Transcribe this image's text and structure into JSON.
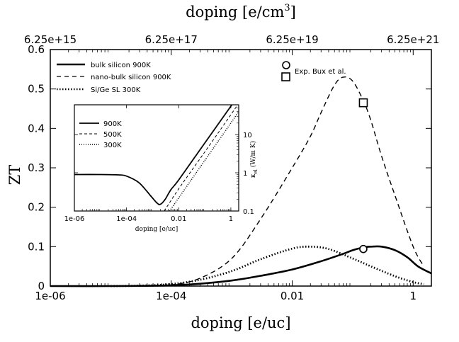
{
  "chart_data": [
    {
      "type": "line",
      "xlabel": "doping [e/uc]",
      "ylabel": "ZT",
      "x2label": "doping [e/cm",
      "x2label_sup": "3",
      "x2label_end": "]",
      "x_scale": "log",
      "xlim": [
        1e-06,
        2
      ],
      "ylim": [
        0,
        0.6
      ],
      "x_ticks": [
        1e-06,
        0.0001,
        0.01,
        1
      ],
      "x_tick_labels": [
        "1e-06",
        "1e-04",
        "0.01",
        "1"
      ],
      "y_ticks": [
        0,
        0.1,
        0.2,
        0.3,
        0.4,
        0.5,
        0.6
      ],
      "y_tick_labels": [
        "0",
        "0.1",
        "0.2",
        "0.3",
        "0.4",
        "0.5",
        "0.6"
      ],
      "x2_tick_labels": [
        "6.25e+15",
        "6.25e+17",
        "6.25e+19",
        "6.25e+21"
      ],
      "legend_position": "top-left",
      "series": [
        {
          "name": "bulk silicon 900K",
          "style": "solid",
          "x": [
            1e-06,
            1e-05,
            3e-05,
            0.0001,
            0.0003,
            0.001,
            0.003,
            0.01,
            0.03,
            0.07,
            0.1,
            0.15,
            0.2,
            0.3,
            0.5,
            0.8,
            1.2,
            2
          ],
          "y": [
            0,
            0,
            0.0005,
            0.002,
            0.006,
            0.014,
            0.026,
            0.042,
            0.063,
            0.082,
            0.091,
            0.098,
            0.1,
            0.1,
            0.091,
            0.073,
            0.05,
            0.032
          ]
        },
        {
          "name": "nano-bulk silicon 900K",
          "style": "dashed",
          "x": [
            1e-05,
            3e-05,
            0.0001,
            0.0003,
            0.001,
            0.003,
            0.01,
            0.02,
            0.03,
            0.05,
            0.07,
            0.1,
            0.15,
            0.2,
            0.3,
            0.5,
            1,
            1.5
          ],
          "y": [
            0,
            0.001,
            0.003,
            0.02,
            0.07,
            0.17,
            0.3,
            0.38,
            0.44,
            0.51,
            0.53,
            0.52,
            0.47,
            0.42,
            0.33,
            0.23,
            0.1,
            0.05
          ]
        },
        {
          "name": "Si/Ge SL 300K",
          "style": "dotted",
          "x": [
            1e-05,
            3e-05,
            0.0001,
            0.0003,
            0.001,
            0.003,
            0.01,
            0.02,
            0.04,
            0.1,
            0.2,
            0.5,
            1,
            1.5
          ],
          "y": [
            0,
            0.001,
            0.005,
            0.016,
            0.038,
            0.068,
            0.095,
            0.1,
            0.094,
            0.07,
            0.05,
            0.025,
            0.01,
            0.005
          ]
        }
      ],
      "experiments": [
        {
          "name": "Exp. Bux et al.",
          "marker": "circle",
          "x": 0.15,
          "y": 0.094
        },
        {
          "name": "",
          "marker": "square",
          "x": 0.15,
          "y": 0.465
        }
      ]
    },
    {
      "type": "line",
      "xlabel": "doping [e/uc]",
      "ylabel": "κ",
      "ylabel_sub": "el",
      "ylabel_end": " (W/m K)",
      "x_scale": "log",
      "y_scale": "log",
      "xlim": [
        1e-06,
        2
      ],
      "ylim": [
        0.1,
        60
      ],
      "x_tick_labels": [
        "1e-06",
        "1e-04",
        "0.01",
        "1"
      ],
      "y_tick_labels": [
        "0.1",
        "1",
        "10"
      ],
      "legend_position": "top-left",
      "series": [
        {
          "name": "900K",
          "style": "solid",
          "x": [
            1e-06,
            1e-05,
            5e-05,
            0.0001,
            0.0003,
            0.0008,
            0.0015,
            0.002,
            0.003,
            0.005,
            0.01,
            0.1,
            1,
            2
          ],
          "y": [
            0.9,
            0.9,
            0.88,
            0.82,
            0.55,
            0.26,
            0.16,
            0.15,
            0.2,
            0.36,
            0.65,
            6,
            55,
            110
          ]
        },
        {
          "name": "500K",
          "style": "dashed",
          "x": [
            0.0028,
            0.01,
            0.1,
            1,
            2
          ],
          "y": [
            0.1,
            0.38,
            3.5,
            33,
            66
          ]
        },
        {
          "name": "300K",
          "style": "dotted",
          "x": [
            0.0045,
            0.01,
            0.1,
            1,
            2
          ],
          "y": [
            0.1,
            0.22,
            2.1,
            20,
            40
          ]
        }
      ]
    }
  ]
}
